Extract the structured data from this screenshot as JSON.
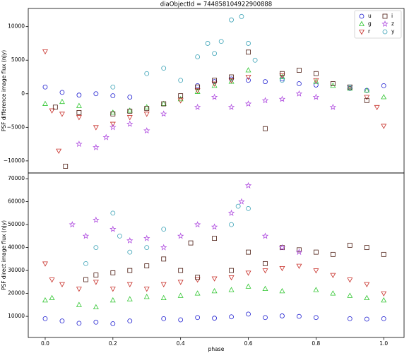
{
  "chart_data": [
    {
      "type": "scatter",
      "title": "diaObjectId = 744858104922900888",
      "y_label": "PSF difference image flux (nJy)",
      "xlim": [
        -0.05,
        1.06
      ],
      "ylim": [
        -11800,
        12700
      ],
      "yticks": [
        {
          "value": -10000,
          "label": "−10000"
        },
        {
          "value": -5000,
          "label": "−5000"
        },
        0,
        5000,
        10000
      ],
      "legend": "upper right",
      "series": [
        {
          "name": "u",
          "color": "#1c1cd0",
          "marker": "o",
          "x": [
            0.0,
            0.05,
            0.1,
            0.15,
            0.2,
            0.25,
            0.45,
            0.5,
            0.55,
            0.6,
            0.65,
            0.7,
            0.75,
            0.8,
            0.9,
            0.95,
            1.0
          ],
          "values": [
            1000,
            200,
            -200,
            0,
            -300,
            -500,
            1200,
            1800,
            2200,
            2000,
            1800,
            2200,
            1500,
            1300,
            800,
            500,
            1200
          ]
        },
        {
          "name": "g",
          "color": "#2fc52f",
          "marker": "^",
          "x": [
            0.0,
            0.05,
            0.1,
            0.2,
            0.25,
            0.3,
            0.35,
            0.4,
            0.45,
            0.5,
            0.55,
            0.6,
            0.7,
            0.8,
            0.85,
            0.9,
            0.95,
            1.0
          ],
          "values": [
            -1500,
            -1200,
            -1800,
            -2800,
            -2500,
            -2000,
            -1500,
            -800,
            300,
            1200,
            1800,
            3500,
            2500,
            1800,
            1200,
            800,
            500,
            -500
          ]
        },
        {
          "name": "r",
          "color": "#c8302a",
          "marker": "v",
          "x": [
            0.0,
            0.02,
            0.04,
            0.05,
            0.1,
            0.15,
            0.2,
            0.25,
            0.3,
            0.4,
            0.45,
            0.5,
            0.55,
            0.6,
            0.7,
            0.8,
            0.9,
            0.95,
            0.98,
            1.0
          ],
          "values": [
            6300,
            -2500,
            -8500,
            -3000,
            -3500,
            -5000,
            -4500,
            -3500,
            -3000,
            -1000,
            500,
            1500,
            2000,
            2500,
            2700,
            2000,
            1000,
            -500,
            -2000,
            -4800
          ]
        },
        {
          "name": "i",
          "color": "#4a1a10",
          "marker": "s",
          "x": [
            0.03,
            0.06,
            0.1,
            0.2,
            0.25,
            0.3,
            0.35,
            0.4,
            0.45,
            0.5,
            0.55,
            0.6,
            0.65,
            0.7,
            0.75,
            0.8,
            0.85,
            0.9,
            0.95
          ],
          "values": [
            -2000,
            -10800,
            -2800,
            -3000,
            -2600,
            -2200,
            -1500,
            -300,
            1000,
            2000,
            2500,
            6200,
            -5200,
            3000,
            3500,
            3000,
            1500,
            1000,
            -1000
          ]
        },
        {
          "name": "z",
          "color": "#b04ee0",
          "marker": "*",
          "x": [
            0.1,
            0.15,
            0.18,
            0.2,
            0.25,
            0.3,
            0.35,
            0.45,
            0.5,
            0.55,
            0.6,
            0.65,
            0.7,
            0.75,
            0.8,
            0.85
          ],
          "values": [
            -7500,
            -8000,
            -6500,
            -5000,
            -4500,
            -5500,
            -3000,
            -2000,
            -500,
            -2000,
            -1500,
            -1000,
            -800,
            0,
            -500,
            -2000
          ]
        },
        {
          "name": "y",
          "color": "#3aa2b6",
          "marker": "o",
          "x": [
            0.2,
            0.3,
            0.35,
            0.4,
            0.45,
            0.48,
            0.5,
            0.52,
            0.55,
            0.58,
            0.6,
            0.62,
            0.7,
            0.9
          ],
          "values": [
            1000,
            3000,
            3800,
            2000,
            5500,
            7500,
            6000,
            7800,
            11000,
            11500,
            7500,
            5000,
            2000,
            1000
          ]
        }
      ]
    },
    {
      "type": "scatter",
      "x_label": "phase",
      "y_label": "PSF direct image flux (nJy)",
      "xlim": [
        -0.05,
        1.06
      ],
      "ylim": [
        800,
        72500
      ],
      "xticks": [
        {
          "value": 0,
          "label": "0.0"
        },
        0.2,
        0.4,
        0.6,
        0.8,
        {
          "value": 1,
          "label": "1.0"
        }
      ],
      "yticks": [
        10000,
        20000,
        30000,
        40000,
        50000,
        60000,
        70000
      ],
      "series": [
        {
          "color": "#1c1cd0",
          "marker": "o",
          "x": [
            0.0,
            0.05,
            0.1,
            0.15,
            0.2,
            0.25,
            0.35,
            0.4,
            0.45,
            0.5,
            0.55,
            0.6,
            0.65,
            0.7,
            0.75,
            0.8,
            0.9,
            0.95,
            1.0
          ],
          "values": [
            9000,
            8000,
            7000,
            7500,
            6800,
            8000,
            9000,
            8500,
            9500,
            9200,
            9800,
            11000,
            9500,
            10200,
            10000,
            9500,
            9000,
            8800,
            9000
          ]
        },
        {
          "color": "#2fc52f",
          "marker": "^",
          "x": [
            0.0,
            0.02,
            0.1,
            0.15,
            0.2,
            0.25,
            0.3,
            0.35,
            0.4,
            0.45,
            0.5,
            0.55,
            0.6,
            0.65,
            0.7,
            0.8,
            0.85,
            0.9,
            0.95,
            1.0
          ],
          "values": [
            17000,
            18000,
            15000,
            14000,
            17000,
            17500,
            18500,
            18000,
            19000,
            20000,
            21000,
            21500,
            23000,
            22000,
            21000,
            21500,
            20000,
            19000,
            18000,
            17000
          ]
        },
        {
          "color": "#c8302a",
          "marker": "v",
          "x": [
            0.0,
            0.02,
            0.05,
            0.1,
            0.15,
            0.2,
            0.25,
            0.3,
            0.35,
            0.4,
            0.45,
            0.5,
            0.55,
            0.6,
            0.65,
            0.7,
            0.75,
            0.8,
            0.85,
            0.9,
            0.95,
            1.0
          ],
          "values": [
            33000,
            26000,
            24000,
            22000,
            25000,
            22000,
            24000,
            22000,
            24000,
            25000,
            26000,
            26500,
            27000,
            29000,
            30000,
            31000,
            32000,
            30000,
            28000,
            26000,
            24000,
            20000
          ]
        },
        {
          "color": "#4a1a10",
          "marker": "s",
          "x": [
            0.12,
            0.15,
            0.2,
            0.25,
            0.3,
            0.35,
            0.4,
            0.43,
            0.45,
            0.5,
            0.55,
            0.6,
            0.65,
            0.7,
            0.75,
            0.8,
            0.85,
            0.9,
            0.95,
            1.0
          ],
          "values": [
            26000,
            28000,
            29000,
            30000,
            32000,
            35000,
            30000,
            42000,
            27000,
            44000,
            30000,
            38000,
            33000,
            40000,
            39000,
            38000,
            37000,
            41000,
            40000,
            37000
          ]
        },
        {
          "color": "#b04ee0",
          "marker": "*",
          "x": [
            0.08,
            0.12,
            0.15,
            0.2,
            0.25,
            0.3,
            0.35,
            0.4,
            0.45,
            0.5,
            0.55,
            0.58,
            0.6,
            0.65,
            0.7,
            0.75
          ],
          "values": [
            50000,
            45000,
            52000,
            48000,
            43000,
            44000,
            40000,
            45000,
            50000,
            49000,
            55000,
            60000,
            67000,
            45000,
            40000,
            38000
          ]
        },
        {
          "color": "#3aa2b6",
          "marker": "o",
          "x": [
            0.12,
            0.15,
            0.2,
            0.22,
            0.25,
            0.3,
            0.35,
            0.55,
            0.57,
            0.6
          ],
          "values": [
            33000,
            40000,
            55000,
            45000,
            38000,
            40000,
            48000,
            50000,
            58000,
            57000
          ]
        }
      ]
    }
  ]
}
